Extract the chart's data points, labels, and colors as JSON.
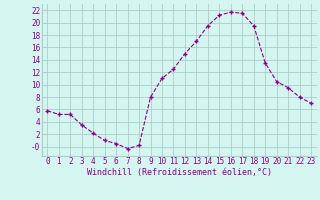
{
  "x": [
    0,
    1,
    2,
    3,
    4,
    5,
    6,
    7,
    8,
    9,
    10,
    11,
    12,
    13,
    14,
    15,
    16,
    17,
    18,
    19,
    20,
    21,
    22,
    23
  ],
  "y": [
    5.8,
    5.2,
    5.2,
    3.5,
    2.2,
    1.0,
    0.5,
    -0.3,
    0.2,
    8.0,
    11.0,
    12.5,
    15.0,
    17.0,
    19.5,
    21.2,
    21.7,
    21.5,
    19.5,
    13.5,
    10.5,
    9.5,
    8.0,
    7.0
  ],
  "line_color": "#880088",
  "marker": "+",
  "marker_size": 3.5,
  "marker_edge_width": 1.0,
  "line_width": 0.8,
  "bg_color": "#d5f5f0",
  "grid_color": "#aacfc8",
  "xlabel": "Windchill (Refroidissement éolien,°C)",
  "xlabel_fontsize": 6.0,
  "tick_fontsize": 5.5,
  "xlim": [
    -0.5,
    23.5
  ],
  "ylim": [
    -1.5,
    23
  ],
  "yticks": [
    0,
    2,
    4,
    6,
    8,
    10,
    12,
    14,
    16,
    18,
    20,
    22
  ],
  "ytick_labels": [
    "-0",
    "2",
    "4",
    "6",
    "8",
    "10",
    "12",
    "14",
    "16",
    "18",
    "20",
    "22"
  ],
  "xticks": [
    0,
    1,
    2,
    3,
    4,
    5,
    6,
    7,
    8,
    9,
    10,
    11,
    12,
    13,
    14,
    15,
    16,
    17,
    18,
    19,
    20,
    21,
    22,
    23
  ]
}
